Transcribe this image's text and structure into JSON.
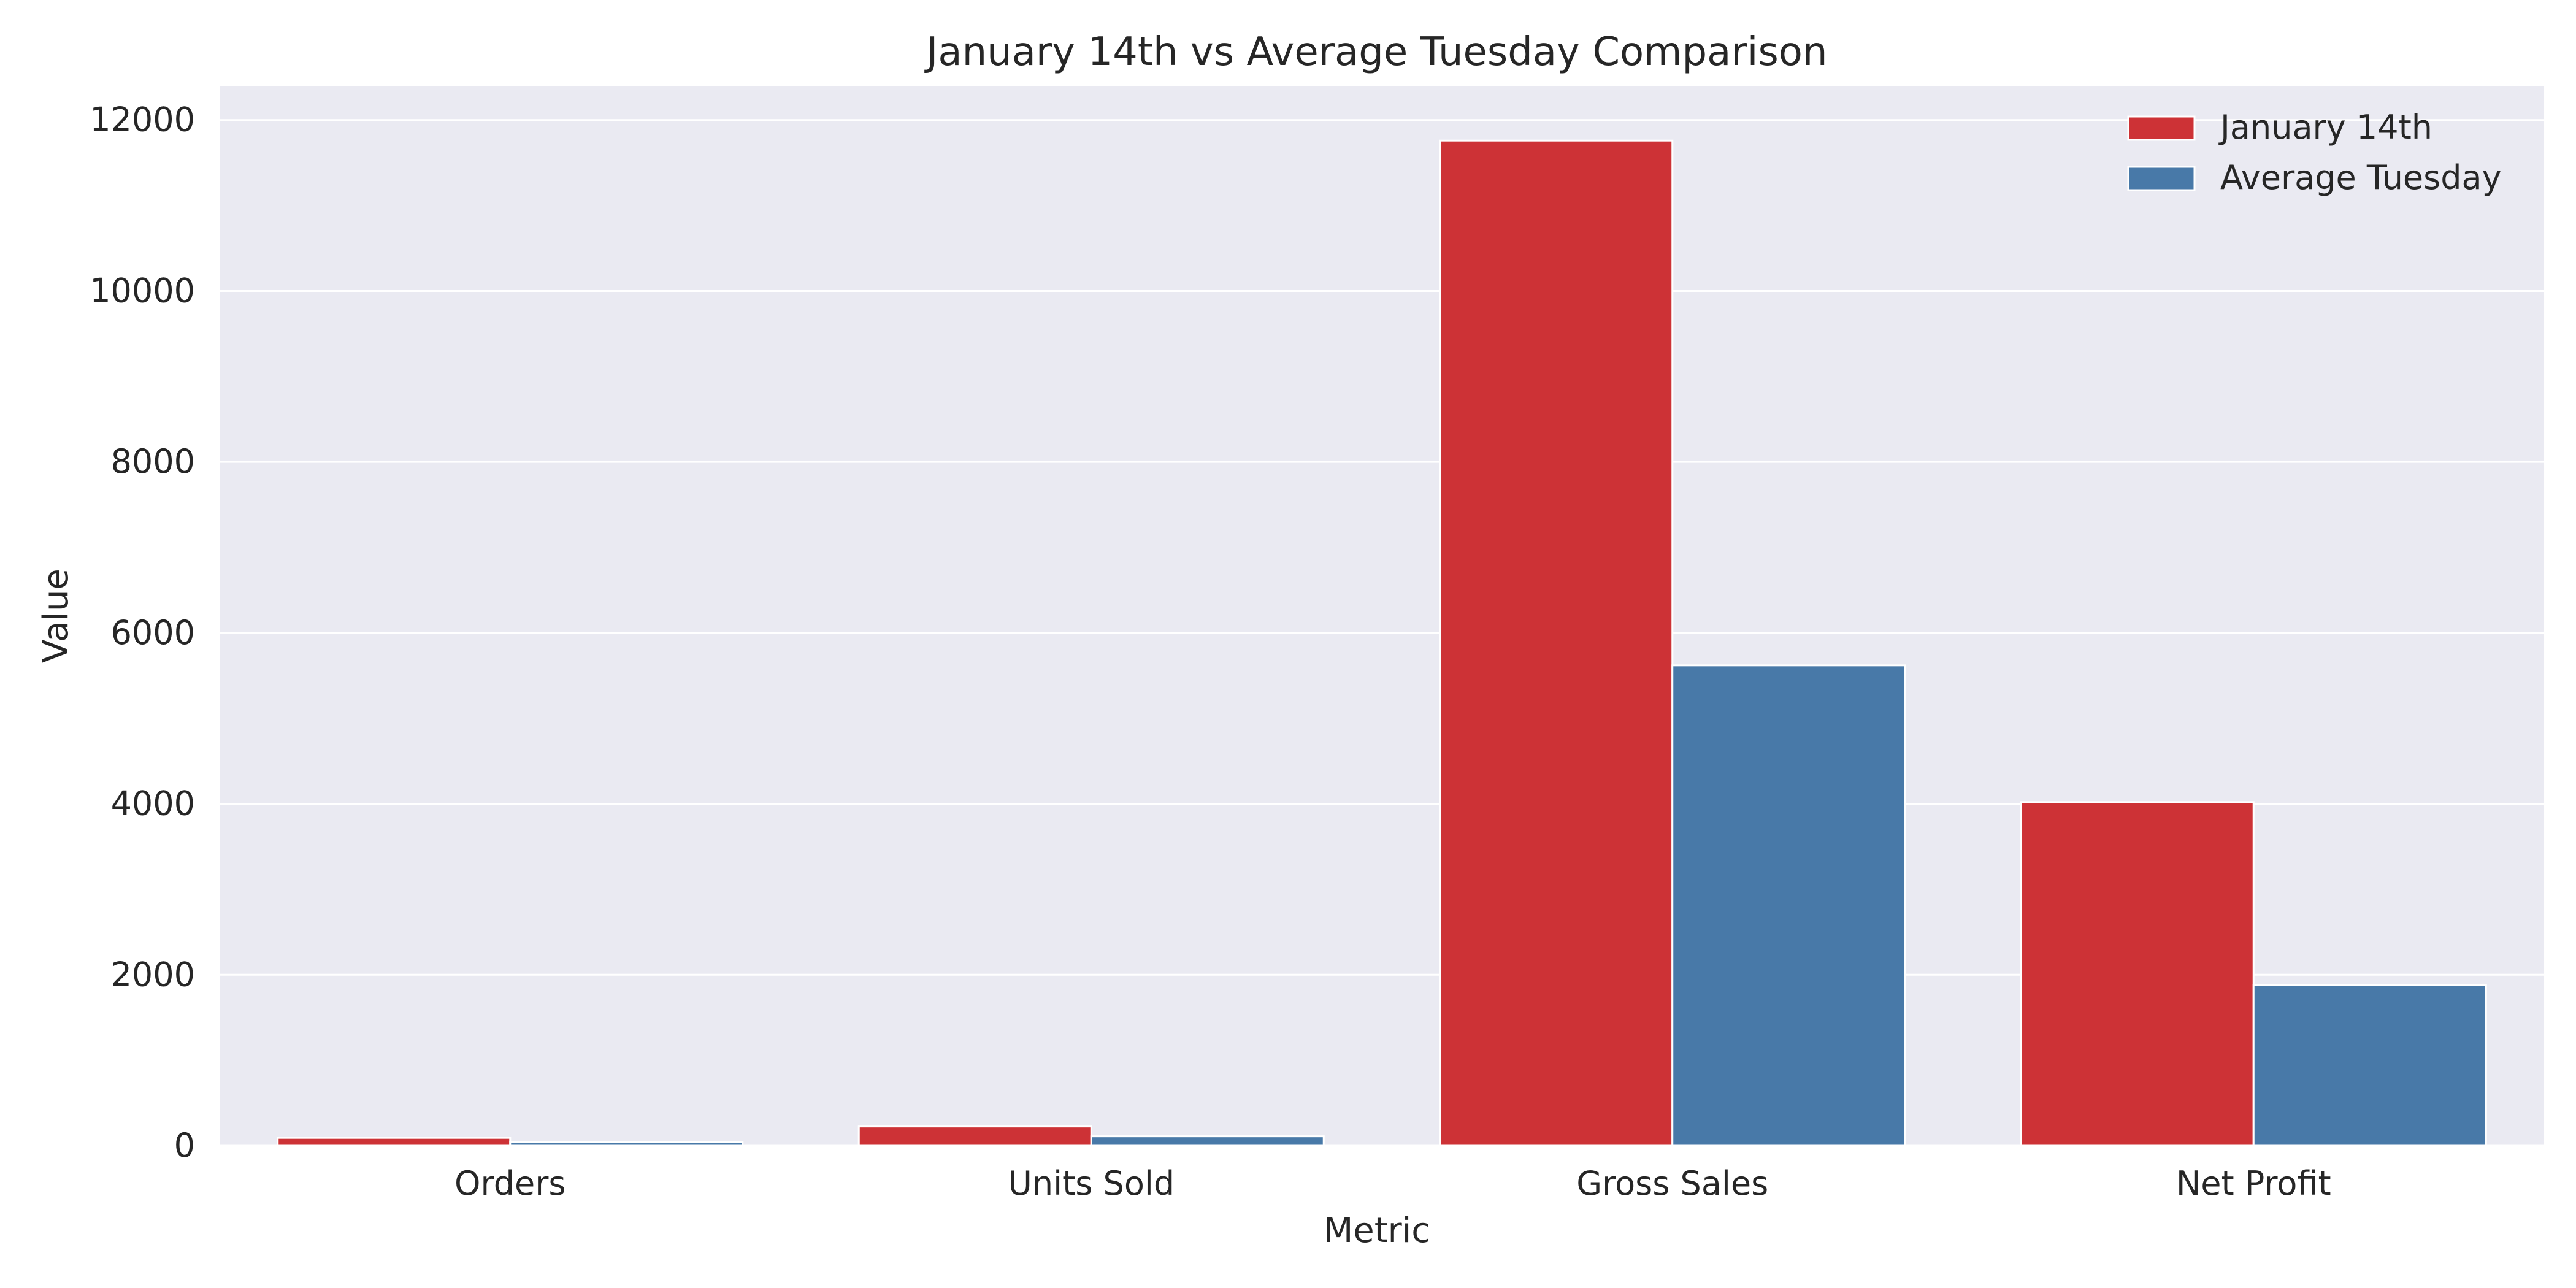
{
  "chart_data": {
    "type": "bar",
    "title": "January 14th vs Average Tuesday Comparison",
    "xlabel": "Metric",
    "ylabel": "Value",
    "categories": [
      "Orders",
      "Units Sold",
      "Gross Sales",
      "Net Profit"
    ],
    "series": [
      {
        "name": "January 14th",
        "color": "#cd3236",
        "values": [
          92,
          225,
          11760,
          4020
        ]
      },
      {
        "name": "Average Tuesday",
        "color": "#4879a8",
        "values": [
          45,
          110,
          5620,
          1880
        ]
      }
    ],
    "ylim": [
      0,
      12400
    ],
    "yticks": [
      "0",
      "2000",
      "4000",
      "6000",
      "8000",
      "10000",
      "12000"
    ],
    "grid": true,
    "legend_position": "top-right"
  },
  "colors": {
    "plot_background": "#eaeaf2",
    "grid": "#ffffff",
    "text": "#262626"
  }
}
